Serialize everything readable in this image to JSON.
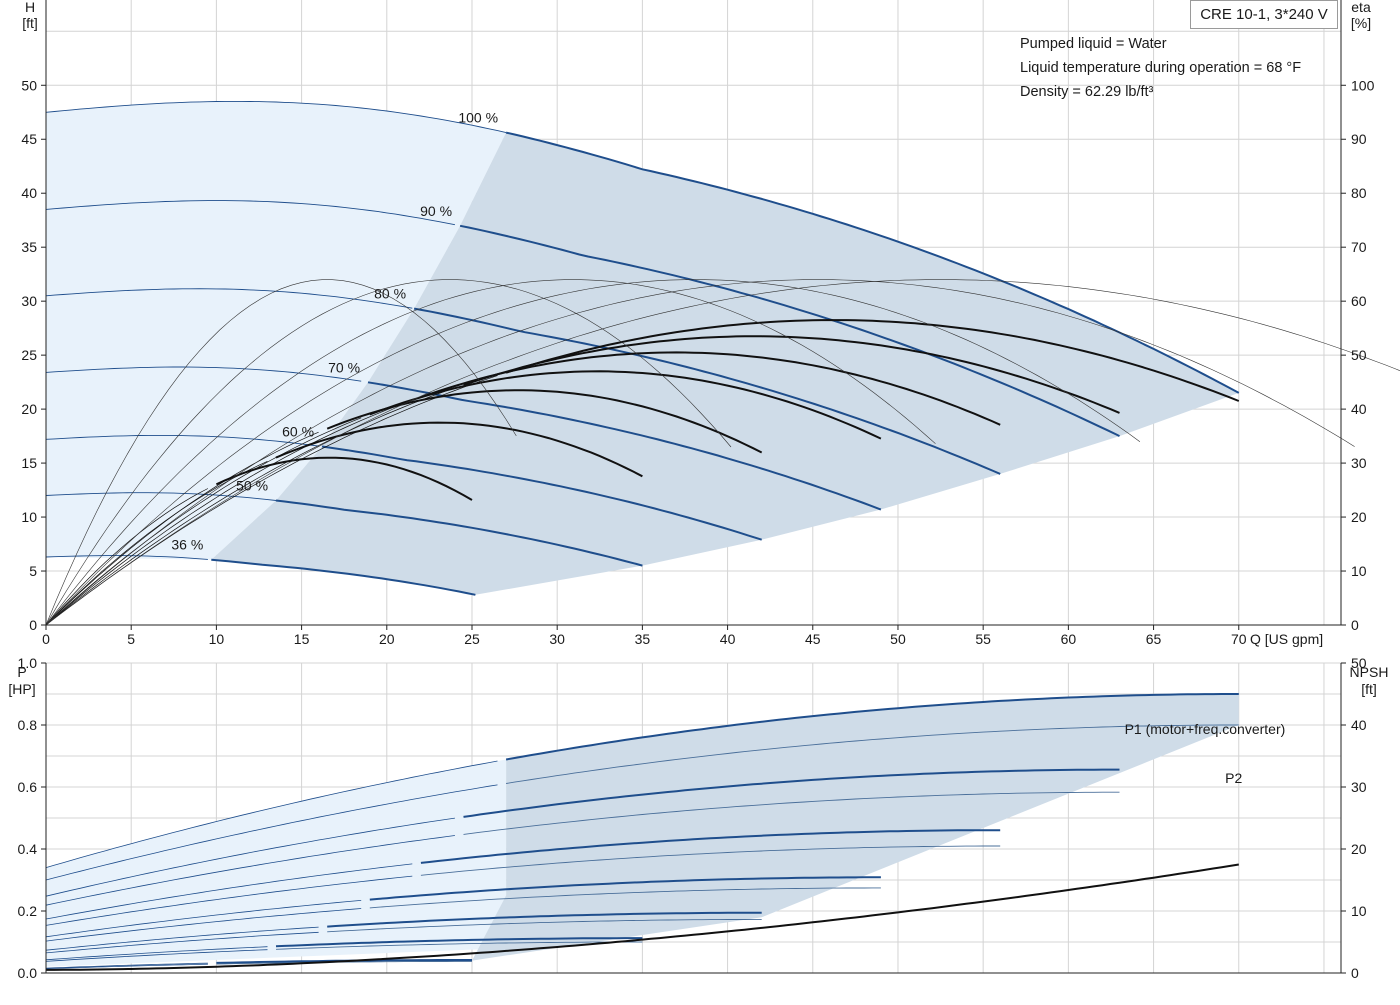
{
  "model": "CRE 10-1, 3*240 V",
  "info_lines": [
    "Pumped liquid = Water",
    "Liquid temperature during operation = 68 °F",
    "Density = 62.29 lb/ft³"
  ],
  "colors": {
    "pump_curve": "#1f4e8c",
    "eff_curve": "#111111",
    "band_light": "#e8f2fb",
    "band_dark": "#cfdce8",
    "grid": "#d4d4d4"
  },
  "chart_data": [
    {
      "type": "line",
      "panel": "head",
      "xlabel": "Q [US gpm]",
      "ylabel_left": [
        "H",
        "[ft]"
      ],
      "ylabel_right": [
        "eta",
        "[%]"
      ],
      "xlim": [
        0,
        76
      ],
      "ylim_left": [
        0,
        57.9
      ],
      "ylim_right": [
        0,
        115.8
      ],
      "x_ticks": [
        "0",
        "5",
        "10",
        "15",
        "20",
        "25",
        "30",
        "35",
        "40",
        "45",
        "50",
        "55",
        "60",
        "65",
        "70"
      ],
      "y_ticks_left": [
        "0",
        "5",
        "10",
        "15",
        "20",
        "25",
        "30",
        "35",
        "40",
        "45",
        "50"
      ],
      "y_ticks_right": [
        "0",
        "10",
        "20",
        "30",
        "40",
        "50",
        "60",
        "70",
        "80",
        "90",
        "100"
      ],
      "speed_curves": [
        {
          "name": "100 %",
          "shutoff_head": 47.5,
          "min_q": 27,
          "max_q": 70,
          "end_head": 21.5
        },
        {
          "name": "90 %",
          "shutoff_head": 38.5,
          "min_q": 24.3,
          "max_q": 63,
          "end_head": 17.5
        },
        {
          "name": "80 %",
          "shutoff_head": 30.5,
          "min_q": 21.6,
          "max_q": 56,
          "end_head": 14
        },
        {
          "name": "70 %",
          "shutoff_head": 23.4,
          "min_q": 18.9,
          "max_q": 49,
          "end_head": 10.7
        },
        {
          "name": "60 %",
          "shutoff_head": 17.2,
          "min_q": 16.2,
          "max_q": 42,
          "end_head": 7.9
        },
        {
          "name": "50 %",
          "shutoff_head": 12.0,
          "min_q": 13.5,
          "max_q": 35,
          "end_head": 5.5
        },
        {
          "name": "36 %",
          "shutoff_head": 6.3,
          "min_q": 9.7,
          "max_q": 25.2,
          "end_head": 2.8
        }
      ],
      "efficiency_peaks_pct": [
        56.5,
        53.5,
        50.5,
        47,
        43.5,
        37.5,
        31
      ],
      "efficiency_max_pct": 64
    },
    {
      "type": "line",
      "panel": "power",
      "xlim": [
        0,
        76
      ],
      "ylabel_left": [
        "P",
        "[HP]"
      ],
      "ylabel_right": [
        "NPSH",
        "[ft]"
      ],
      "ylim_left": [
        0,
        1.0
      ],
      "ylim_right": [
        0,
        50
      ],
      "y_ticks_left": [
        "0.0",
        "0.2",
        "0.4",
        "0.6",
        "0.8",
        "1.0"
      ],
      "y_ticks_right": [
        "0",
        "10",
        "20",
        "30",
        "40",
        "50"
      ],
      "series": [
        {
          "name": "P1 (motor+freq.converter)",
          "shutoff_p": 0.34,
          "max_q": 70,
          "end_p": 0.9
        },
        {
          "name": "P2",
          "shutoff_p": 0.3,
          "max_q": 70,
          "end_p": 0.8
        }
      ],
      "npsh": {
        "start": 0.5,
        "end_q": 70,
        "end": 17.5
      }
    }
  ]
}
